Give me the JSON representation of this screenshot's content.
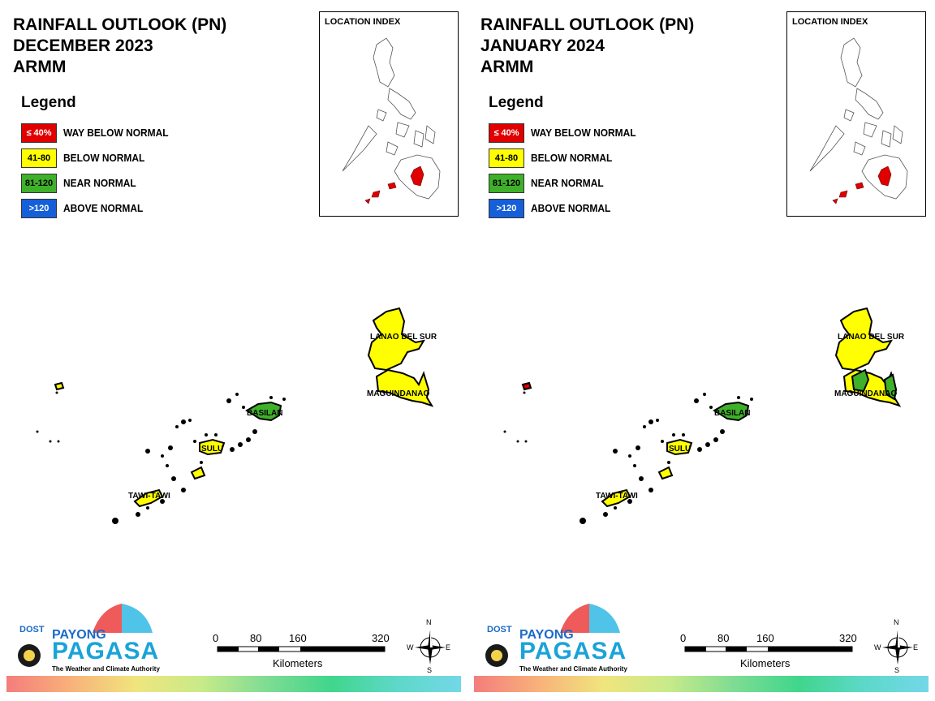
{
  "panels": [
    {
      "title_line1": "RAINFALL OUTLOOK (PN)",
      "title_line2": "DECEMBER 2023",
      "title_line3": "ARMM",
      "lanao_color": "#ffff00",
      "maguindanao_color": "#ffff00",
      "sulu_color": "#ffff00",
      "small_island_color": "#ffff00"
    },
    {
      "title_line1": "RAINFALL OUTLOOK (PN)",
      "title_line2": "JANUARY 2024",
      "title_line3": "ARMM",
      "lanao_color": "#ffff00",
      "maguindanao_color": "#ffff00",
      "sulu_color": "#ffff00",
      "small_island_color": "#e00000"
    }
  ],
  "legend": {
    "heading": "Legend",
    "items": [
      {
        "code": "≤ 40%",
        "label": "WAY BELOW NORMAL",
        "color": "#e00000",
        "text_color": "#ffffff"
      },
      {
        "code": "41-80",
        "label": "BELOW NORMAL",
        "color": "#ffff00",
        "text_color": "#000000"
      },
      {
        "code": "81-120",
        "label": "NEAR NORMAL",
        "color": "#3fb02a",
        "text_color": "#000000"
      },
      {
        "code": ">120",
        "label": "ABOVE NORMAL",
        "color": "#1560d9",
        "text_color": "#ffffff"
      }
    ]
  },
  "location_index": {
    "title": "LOCATION INDEX"
  },
  "map_labels": {
    "lanao": "LANAO DEL SUR",
    "maguindanao": "MAGUINDANAO",
    "basilan": "BASILAN",
    "sulu": "SULU",
    "tawi": "TAWI-TAWI"
  },
  "scale": {
    "ticks": [
      "0",
      "80",
      "160",
      "320"
    ],
    "unit": "Kilometers"
  },
  "compass": {
    "n": "N",
    "s": "S",
    "e": "E",
    "w": "W"
  },
  "logo": {
    "dost": "DOST",
    "payong": "PAYONG",
    "pagasa": "PAGASA",
    "tagline": "The Weather and Climate Authority"
  }
}
